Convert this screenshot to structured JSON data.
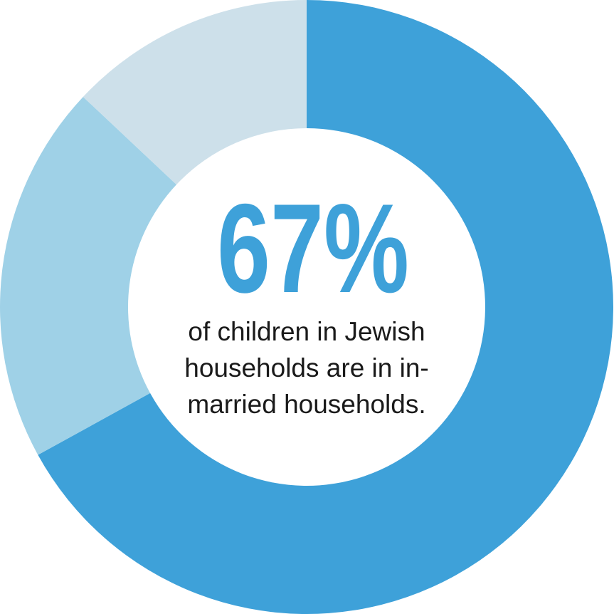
{
  "chart_data": {
    "type": "donut",
    "values": [
      67,
      20,
      13
    ],
    "value_labels": [
      "67%",
      null,
      null
    ],
    "colors": [
      "#3ea1d9",
      "#9fd1e7",
      "#cde0ea"
    ],
    "annotation_lines": [
      "of children in Jewish",
      "households are in in-",
      "married households."
    ]
  }
}
